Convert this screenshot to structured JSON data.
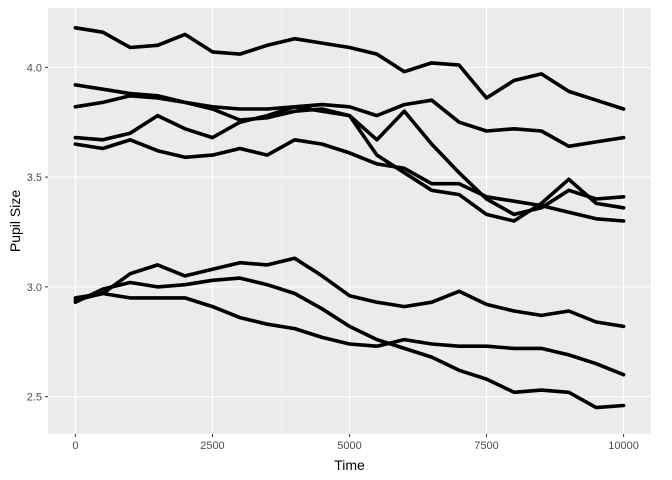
{
  "chart_data": {
    "type": "line",
    "title": "",
    "xlabel": "Time",
    "ylabel": "Pupil Size",
    "xlim": [
      -500,
      10500
    ],
    "ylim": [
      2.33,
      4.27
    ],
    "x_ticks": [
      0,
      2500,
      5000,
      7500,
      10000
    ],
    "x_tick_labels": [
      "0",
      "2500",
      "5000",
      "7500",
      "10000"
    ],
    "y_ticks": [
      2.5,
      3.0,
      3.5,
      4.0
    ],
    "y_tick_labels": [
      "2.5",
      "3.0",
      "3.5",
      "4.0"
    ],
    "grid": true,
    "legend": "none",
    "colors": {
      "panel": "#ebebeb",
      "grid_major": "#ffffff",
      "grid_minor": "#f5f5f5",
      "line": "#000000"
    },
    "x": [
      0,
      500,
      1000,
      1500,
      2000,
      2500,
      3000,
      3500,
      4000,
      4500,
      5000,
      5500,
      6000,
      6500,
      7000,
      7500,
      8000,
      8500,
      9000,
      9500,
      10000
    ],
    "series": [
      {
        "values": [
          4.18,
          4.16,
          4.09,
          4.1,
          4.15,
          4.07,
          4.06,
          4.1,
          4.13,
          4.11,
          4.09,
          4.06,
          3.98,
          4.02,
          4.01,
          3.86,
          3.94,
          3.97,
          3.89,
          3.85,
          3.81
        ]
      },
      {
        "values": [
          3.92,
          3.9,
          3.88,
          3.87,
          3.84,
          3.82,
          3.81,
          3.81,
          3.82,
          3.83,
          3.82,
          3.78,
          3.83,
          3.85,
          3.75,
          3.71,
          3.72,
          3.71,
          3.64,
          3.66,
          3.68
        ]
      },
      {
        "values": [
          3.82,
          3.84,
          3.87,
          3.86,
          3.84,
          3.81,
          3.76,
          3.77,
          3.8,
          3.81,
          3.78,
          3.67,
          3.8,
          3.65,
          3.52,
          3.4,
          3.33,
          3.36,
          3.44,
          3.4,
          3.41
        ]
      },
      {
        "values": [
          3.68,
          3.67,
          3.7,
          3.78,
          3.72,
          3.68,
          3.75,
          3.78,
          3.82,
          3.8,
          3.78,
          3.6,
          3.52,
          3.44,
          3.42,
          3.33,
          3.3,
          3.38,
          3.49,
          3.38,
          3.36
        ]
      },
      {
        "values": [
          3.65,
          3.63,
          3.67,
          3.62,
          3.59,
          3.6,
          3.63,
          3.6,
          3.67,
          3.65,
          3.61,
          3.56,
          3.54,
          3.47,
          3.47,
          3.41,
          3.39,
          3.37,
          3.34,
          3.31,
          3.3
        ]
      },
      {
        "values": [
          2.95,
          2.97,
          3.06,
          3.1,
          3.05,
          3.08,
          3.11,
          3.1,
          3.13,
          3.05,
          2.96,
          2.93,
          2.91,
          2.93,
          2.98,
          2.92,
          2.89,
          2.87,
          2.89,
          2.84,
          2.82
        ]
      },
      {
        "values": [
          2.94,
          2.97,
          2.95,
          2.95,
          2.95,
          2.91,
          2.86,
          2.83,
          2.81,
          2.77,
          2.74,
          2.73,
          2.76,
          2.74,
          2.73,
          2.73,
          2.72,
          2.72,
          2.69,
          2.65,
          2.6
        ]
      },
      {
        "values": [
          2.93,
          2.99,
          3.02,
          3.0,
          3.01,
          3.03,
          3.04,
          3.01,
          2.97,
          2.9,
          2.82,
          2.76,
          2.72,
          2.68,
          2.62,
          2.58,
          2.52,
          2.53,
          2.52,
          2.45,
          2.46
        ]
      }
    ]
  }
}
